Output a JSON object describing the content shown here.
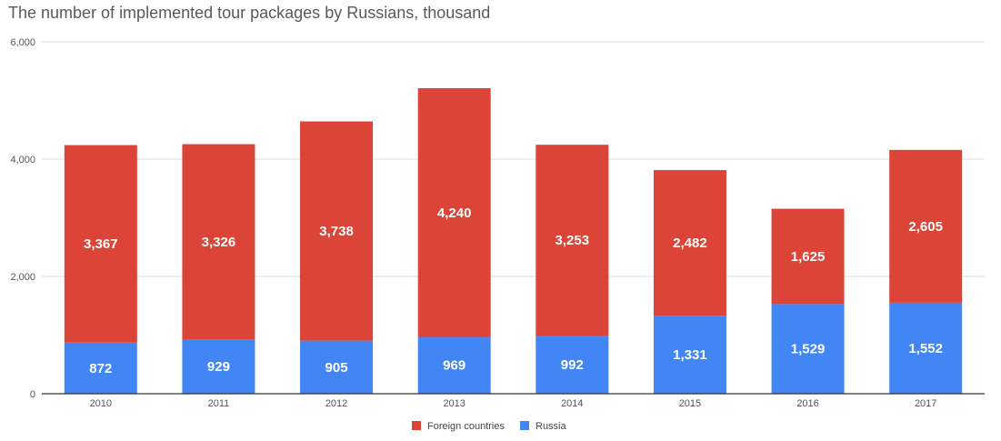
{
  "chart_data": {
    "type": "bar",
    "stacked": true,
    "title": "The number of implemented tour packages by Russians, thousand",
    "categories": [
      "2010",
      "2011",
      "2012",
      "2013",
      "2014",
      "2015",
      "2016",
      "2017"
    ],
    "series": [
      {
        "name": "Russia",
        "color": "#4285f4",
        "values": [
          872,
          929,
          905,
          969,
          992,
          1331,
          1529,
          1552
        ],
        "labels": [
          "872",
          "929",
          "905",
          "969",
          "992",
          "1,331",
          "1,529",
          "1,552"
        ]
      },
      {
        "name": "Foreign countries",
        "color": "#db4437",
        "values": [
          3367,
          3326,
          3738,
          4240,
          3253,
          2482,
          1625,
          2605
        ],
        "labels": [
          "3,367",
          "3,326",
          "3,738",
          "4,240",
          "3,253",
          "2,482",
          "1,625",
          "2,605"
        ]
      }
    ],
    "legend": [
      {
        "name": "Foreign countries",
        "color": "#db4437"
      },
      {
        "name": "Russia",
        "color": "#4285f4"
      }
    ],
    "ylim": [
      0,
      6000
    ],
    "yticks": [
      0,
      2000,
      4000,
      6000
    ],
    "ytick_labels": [
      "0",
      "2,000",
      "4,000",
      "6,000"
    ],
    "legend_position": "bottom",
    "grid": true,
    "xlabel": "",
    "ylabel": ""
  }
}
